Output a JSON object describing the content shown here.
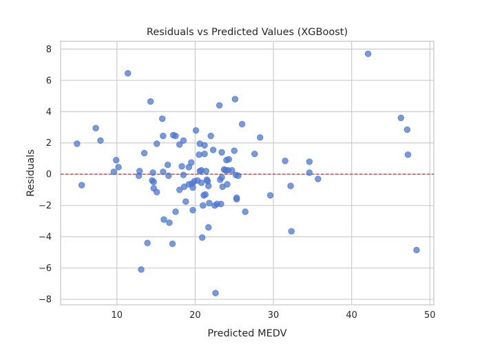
{
  "chart_data": {
    "type": "scatter",
    "title": "Residuals vs Predicted Values (XGBoost)",
    "xlabel": "Predicted MEDV",
    "ylabel": "Residuals",
    "xlim": [
      2.8,
      50.5
    ],
    "ylim": [
      -8.35,
      8.5
    ],
    "xticks": [
      10,
      20,
      30,
      40,
      50
    ],
    "yticks": [
      -8,
      -6,
      -4,
      -2,
      0,
      2,
      4,
      6,
      8
    ],
    "grid": true,
    "reference_line": {
      "y": 0,
      "color": "#ff0000",
      "style": "dashed"
    },
    "point_color": "#4a78d4",
    "point_opacity": 0.75,
    "points": [
      [
        4.9,
        1.95
      ],
      [
        5.5,
        -0.7
      ],
      [
        7.3,
        2.95
      ],
      [
        7.9,
        2.15
      ],
      [
        9.6,
        0.15
      ],
      [
        9.9,
        0.9
      ],
      [
        10.2,
        0.45
      ],
      [
        11.4,
        6.45
      ],
      [
        12.8,
        -0.1
      ],
      [
        12.9,
        0.2
      ],
      [
        13.1,
        -6.1
      ],
      [
        13.5,
        1.35
      ],
      [
        13.9,
        -4.4
      ],
      [
        14.3,
        4.65
      ],
      [
        14.5,
        -0.4
      ],
      [
        14.6,
        0.1
      ],
      [
        14.7,
        -0.9
      ],
      [
        14.7,
        -0.5
      ],
      [
        15.1,
        1.95
      ],
      [
        15.1,
        -1.15
      ],
      [
        15.8,
        3.55
      ],
      [
        15.9,
        2.45
      ],
      [
        15.9,
        0.15
      ],
      [
        16.0,
        -2.9
      ],
      [
        16.5,
        0.6
      ],
      [
        16.6,
        -0.1
      ],
      [
        16.7,
        -3.1
      ],
      [
        17.1,
        -4.45
      ],
      [
        17.2,
        2.5
      ],
      [
        17.5,
        2.45
      ],
      [
        17.5,
        -2.4
      ],
      [
        18.0,
        -1.0
      ],
      [
        18.0,
        1.9
      ],
      [
        18.3,
        0.5
      ],
      [
        18.5,
        -0.05
      ],
      [
        18.5,
        2.15
      ],
      [
        18.6,
        -0.8
      ],
      [
        18.8,
        -1.75
      ],
      [
        19.2,
        -0.65
      ],
      [
        19.2,
        0.45
      ],
      [
        19.5,
        0.75
      ],
      [
        19.6,
        -0.6
      ],
      [
        19.7,
        -0.85
      ],
      [
        19.7,
        -2.3
      ],
      [
        19.9,
        -0.45
      ],
      [
        20.1,
        2.8
      ],
      [
        20.3,
        -0.4
      ],
      [
        20.5,
        1.25
      ],
      [
        20.6,
        1.95
      ],
      [
        20.6,
        0.2
      ],
      [
        20.8,
        -0.55
      ],
      [
        20.8,
        0.25
      ],
      [
        20.9,
        -4.05
      ],
      [
        21.0,
        -2.0
      ],
      [
        21.1,
        -1.35
      ],
      [
        21.2,
        1.3
      ],
      [
        21.2,
        1.85
      ],
      [
        21.3,
        -1.3
      ],
      [
        21.4,
        0.2
      ],
      [
        21.5,
        -0.35
      ],
      [
        21.6,
        -0.45
      ],
      [
        21.7,
        -0.75
      ],
      [
        21.7,
        -3.4
      ],
      [
        21.8,
        -1.85
      ],
      [
        22.0,
        2.45
      ],
      [
        22.3,
        1.55
      ],
      [
        22.5,
        -2.0
      ],
      [
        22.6,
        -7.6
      ],
      [
        22.8,
        -1.9
      ],
      [
        23.1,
        4.4
      ],
      [
        23.2,
        -0.35
      ],
      [
        23.3,
        -1.9
      ],
      [
        23.4,
        1.4
      ],
      [
        23.4,
        -0.2
      ],
      [
        23.5,
        -0.8
      ],
      [
        23.7,
        0.3
      ],
      [
        23.9,
        0.25
      ],
      [
        24.0,
        0.9
      ],
      [
        24.1,
        -0.65
      ],
      [
        24.2,
        0.25
      ],
      [
        24.3,
        0.95
      ],
      [
        24.7,
        0.25
      ],
      [
        25.0,
        1.5
      ],
      [
        25.1,
        4.8
      ],
      [
        25.2,
        -0.05
      ],
      [
        25.3,
        -1.6
      ],
      [
        25.3,
        -1.5
      ],
      [
        25.5,
        -0.1
      ],
      [
        26.0,
        3.2
      ],
      [
        26.4,
        -2.4
      ],
      [
        27.6,
        1.3
      ],
      [
        28.3,
        2.35
      ],
      [
        29.6,
        -1.35
      ],
      [
        31.5,
        0.85
      ],
      [
        32.2,
        -0.75
      ],
      [
        32.3,
        -3.65
      ],
      [
        34.6,
        0.1
      ],
      [
        34.6,
        0.8
      ],
      [
        35.7,
        -0.3
      ],
      [
        42.1,
        7.7
      ],
      [
        46.3,
        3.6
      ],
      [
        47.1,
        2.85
      ],
      [
        47.2,
        1.25
      ],
      [
        48.3,
        -4.85
      ]
    ]
  }
}
